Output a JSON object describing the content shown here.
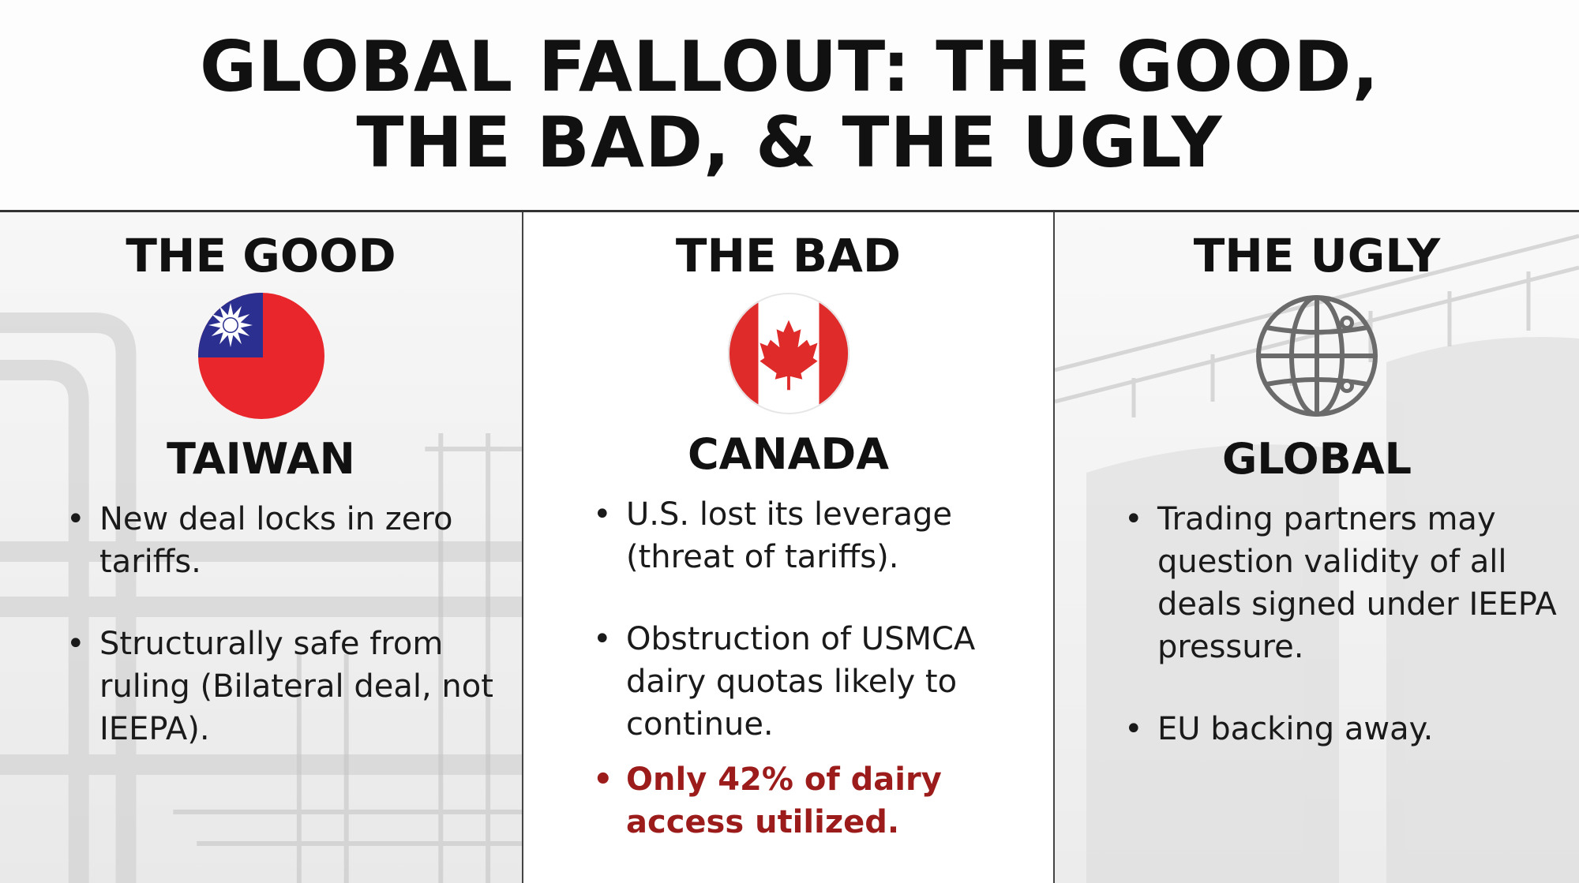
{
  "title": {
    "line1": "GLOBAL FALLOUT:  THE GOOD,",
    "line2": "THE BAD, & THE UGLY"
  },
  "columns": [
    {
      "heading": "THE GOOD",
      "emblem": "taiwan-flag-icon",
      "country": "TAIWAN",
      "bullets": [
        "New deal locks in zero tariffs.",
        "Structurally safe from ruling (Bilateral deal, not IEEPA)."
      ]
    },
    {
      "heading": "THE BAD",
      "emblem": "canada-flag-icon",
      "country": "CANADA",
      "bullets": [
        "U.S. lost its leverage (threat of tariffs).",
        "Obstruction of USMCA dairy quotas likely to continue."
      ],
      "highlight_bullet": "Only 42% of dairy access utilized."
    },
    {
      "heading": "THE UGLY",
      "emblem": "globe-icon",
      "country": "GLOBAL",
      "bullets": [
        "Trading partners may question validity of all deals signed under IEEPA pressure.",
        "EU backing away."
      ]
    }
  ],
  "colors": {
    "highlight": "#9c1c1c",
    "taiwan_red": "#e8262b",
    "taiwan_blue": "#2b2f8f",
    "canada_red": "#e02b2b"
  }
}
